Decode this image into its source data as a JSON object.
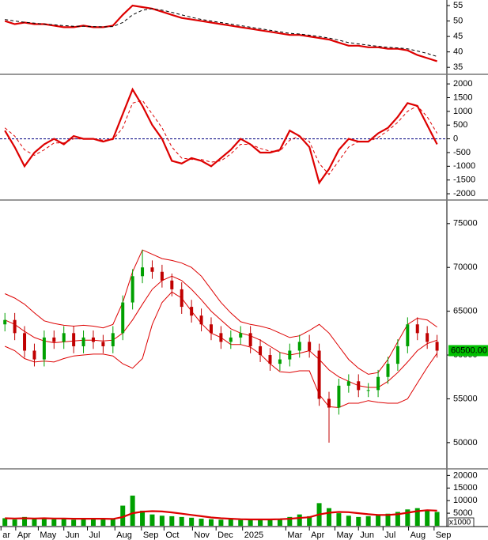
{
  "chart_data": [
    {
      "type": "line",
      "ylim": [
        33,
        56.8
      ],
      "yticks": [
        35,
        40,
        45,
        50,
        55
      ],
      "series": [
        {
          "color": "#dd0000",
          "style": "solid",
          "values": [
            50,
            49,
            49.5,
            49,
            49,
            48.5,
            48,
            48,
            48.5,
            48,
            48,
            48.5,
            52,
            55,
            54.5,
            54,
            53,
            52,
            51,
            50.5,
            50,
            49.5,
            49,
            48.5,
            48,
            47.5,
            47,
            46.5,
            46,
            45.5,
            45.5,
            45,
            44.5,
            44,
            43,
            42,
            42,
            41.5,
            41.5,
            41,
            41,
            40.5,
            39,
            38,
            37
          ]
        },
        {
          "color": "#000000",
          "style": "dashed",
          "values": [
            50.5,
            50,
            49.6,
            49.3,
            49,
            48.8,
            48.5,
            48.3,
            48.3,
            48.2,
            48.1,
            48.2,
            49.5,
            52,
            53.5,
            54,
            53.5,
            52.8,
            52,
            51.2,
            50.5,
            50,
            49.5,
            49,
            48.5,
            48,
            47.5,
            47,
            46.5,
            46,
            45.8,
            45.4,
            45,
            44.5,
            43.8,
            43,
            42.6,
            42.2,
            41.8,
            41.5,
            41.3,
            41,
            40.3,
            39.5,
            38.5
          ]
        }
      ]
    },
    {
      "type": "line",
      "ylim": [
        -2200,
        2320
      ],
      "yticks": [
        -2000,
        -1500,
        -1000,
        -500,
        0,
        500,
        1000,
        1500,
        2000
      ],
      "zero_line": true,
      "series": [
        {
          "color": "#dd0000",
          "style": "solid",
          "values": [
            300,
            -300,
            -1000,
            -500,
            -200,
            0,
            -200,
            100,
            0,
            0,
            -100,
            0,
            900,
            1800,
            1200,
            500,
            0,
            -800,
            -900,
            -700,
            -800,
            -1000,
            -700,
            -400,
            0,
            -200,
            -500,
            -500,
            -400,
            300,
            100,
            -300,
            -1600,
            -1100,
            -400,
            0,
            -100,
            -100,
            200,
            400,
            800,
            1300,
            1200,
            500,
            -200
          ]
        },
        {
          "color": "#dd0000",
          "style": "dashed",
          "values": [
            400,
            100,
            -400,
            -600,
            -400,
            -150,
            -150,
            0,
            0,
            0,
            -50,
            -30,
            400,
            1300,
            1400,
            900,
            400,
            -300,
            -700,
            -750,
            -750,
            -850,
            -800,
            -550,
            -200,
            -200,
            -350,
            -450,
            -450,
            -50,
            100,
            -100,
            -900,
            -1300,
            -800,
            -300,
            -100,
            -100,
            50,
            300,
            600,
            1000,
            1200,
            800,
            200
          ]
        }
      ]
    },
    {
      "type": "candlestick",
      "ylim": [
        47100,
        77600
      ],
      "yticks": [
        50000,
        55000,
        60000,
        65000,
        70000,
        75000
      ],
      "up_color": "#00a000",
      "down_color": "#c00000",
      "open": [
        63500,
        64000,
        62500,
        60500,
        59500,
        62000,
        61500,
        62500,
        61000,
        62000,
        61500,
        61000,
        62500,
        66000,
        69000,
        70000,
        69500,
        68500,
        67500,
        65500,
        64500,
        63500,
        62500,
        61500,
        62000,
        62500,
        61000,
        60000,
        59000,
        59500,
        60500,
        61500,
        60500,
        55000,
        54000,
        56500,
        57000,
        56000,
        56000,
        57500,
        59000,
        61000,
        63500,
        62500,
        61500
      ],
      "high": [
        64800,
        64800,
        63300,
        61300,
        62800,
        62800,
        63300,
        63300,
        62800,
        62800,
        62300,
        63300,
        66800,
        69800,
        72000,
        70800,
        70300,
        69300,
        68300,
        66300,
        65300,
        64300,
        63300,
        62800,
        63300,
        63300,
        61800,
        60800,
        60300,
        61300,
        62300,
        62300,
        61300,
        55800,
        57300,
        57800,
        57800,
        56800,
        58300,
        59800,
        61800,
        64300,
        64300,
        63300,
        62300
      ],
      "low": [
        62700,
        61700,
        59700,
        58700,
        58700,
        60700,
        60700,
        60200,
        60200,
        60700,
        60200,
        60200,
        61700,
        65200,
        68200,
        68700,
        67700,
        66700,
        64700,
        63700,
        62700,
        61700,
        60700,
        60700,
        61200,
        60200,
        59200,
        58200,
        58200,
        58700,
        59700,
        59700,
        54200,
        50000,
        53200,
        55700,
        55200,
        55200,
        55200,
        56700,
        58200,
        60200,
        61700,
        60700,
        59700
      ],
      "close": [
        64000,
        62500,
        60500,
        59500,
        62000,
        61500,
        62500,
        61000,
        62000,
        61500,
        61000,
        62500,
        66000,
        69000,
        70000,
        69500,
        68500,
        67500,
        65500,
        64500,
        63500,
        62500,
        61500,
        62000,
        62500,
        61000,
        60000,
        59000,
        59500,
        60500,
        61500,
        60500,
        55000,
        54000,
        56500,
        57000,
        56000,
        56000,
        57500,
        59000,
        61000,
        63500,
        62500,
        61500,
        60500
      ],
      "series": [
        {
          "color": "#dd0000",
          "style": "thin",
          "values": [
            67000,
            66500,
            65800,
            64800,
            63900,
            63600,
            63400,
            63300,
            63400,
            63300,
            63100,
            63500,
            66000,
            69500,
            72000,
            71500,
            71000,
            70800,
            70500,
            70000,
            69000,
            67500,
            66000,
            64800,
            63800,
            63500,
            63300,
            63000,
            62500,
            62000,
            62200,
            62800,
            63500,
            62500,
            61000,
            59500,
            58500,
            57800,
            58000,
            59500,
            61500,
            63500,
            64200,
            64000,
            63200
          ]
        },
        {
          "color": "#dd0000",
          "style": "thin",
          "values": [
            64000,
            63500,
            62700,
            62000,
            61600,
            61400,
            61500,
            61600,
            61700,
            61700,
            61600,
            61700,
            62500,
            64000,
            65800,
            67500,
            68500,
            69000,
            68500,
            67500,
            66300,
            65000,
            64000,
            63000,
            62500,
            62200,
            61700,
            61000,
            60300,
            60000,
            60200,
            60500,
            59500,
            58300,
            57500,
            57000,
            56500,
            56300,
            56300,
            57000,
            58000,
            59200,
            60500,
            61300,
            61700
          ]
        },
        {
          "color": "#dd0000",
          "style": "thin",
          "values": [
            61000,
            60500,
            59600,
            59200,
            59300,
            59200,
            59600,
            59900,
            60000,
            60100,
            60100,
            59900,
            59000,
            58500,
            59600,
            63500,
            66000,
            67200,
            66500,
            65000,
            63600,
            62500,
            62000,
            61200,
            61200,
            60900,
            60100,
            59000,
            58100,
            58000,
            58200,
            58200,
            55500,
            54100,
            54000,
            54500,
            54500,
            54800,
            54600,
            54500,
            54500,
            55000,
            56800,
            58600,
            60200
          ]
        }
      ],
      "last_price": {
        "value": 60500,
        "label": "60500.00",
        "color": "#00c000"
      }
    },
    {
      "type": "bar",
      "ylim": [
        0,
        22000
      ],
      "yticks": [
        5000,
        10000,
        15000,
        20000
      ],
      "unit_label": "x1000",
      "xlim": [
        -0.5,
        45
      ],
      "xticks": [
        {
          "value": -0.4,
          "label": "ar"
        },
        {
          "value": 1.1,
          "label": "Apr"
        },
        {
          "value": 3.4,
          "label": "May"
        },
        {
          "value": 6,
          "label": "Jun"
        },
        {
          "value": 8.4,
          "label": "Jul"
        },
        {
          "value": 11.2,
          "label": "Aug"
        },
        {
          "value": 13.9,
          "label": "Sep"
        },
        {
          "value": 16.2,
          "label": "Oct"
        },
        {
          "value": 19.1,
          "label": "Nov"
        },
        {
          "value": 21.5,
          "label": "Dec"
        },
        {
          "value": 24.2,
          "label": "2025"
        },
        {
          "value": 28.6,
          "label": "Mar"
        },
        {
          "value": 31,
          "label": "Apr"
        },
        {
          "value": 33.6,
          "label": "May"
        },
        {
          "value": 36,
          "label": "Jun"
        },
        {
          "value": 38.5,
          "label": "Jul"
        },
        {
          "value": 41.1,
          "label": "Aug"
        },
        {
          "value": 43.7,
          "label": "Sep"
        }
      ],
      "series": [
        {
          "color": "#00a000",
          "kind": "bar",
          "values": [
            3000,
            2500,
            3500,
            2800,
            3200,
            2600,
            3000,
            2400,
            2700,
            3100,
            2500,
            2800,
            8000,
            12000,
            6000,
            4500,
            4000,
            3800,
            3500,
            3200,
            2800,
            2600,
            2400,
            2500,
            2300,
            2200,
            2500,
            2600,
            2800,
            3500,
            4500,
            3800,
            9000,
            7000,
            5000,
            4000,
            3500,
            3800,
            4200,
            4800,
            5500,
            6500,
            7000,
            6000,
            5500
          ]
        },
        {
          "color": "#dd0000",
          "kind": "line",
          "values": [
            3000,
            2900,
            3000,
            2900,
            3000,
            2900,
            2900,
            2800,
            2800,
            2800,
            2800,
            2700,
            3500,
            5000,
            5600,
            5800,
            5700,
            5300,
            4800,
            4300,
            3800,
            3300,
            3000,
            2800,
            2600,
            2500,
            2500,
            2500,
            2600,
            2800,
            3100,
            3400,
            4500,
            5200,
            5500,
            5400,
            5000,
            4600,
            4300,
            4300,
            4600,
            5200,
            5800,
            6200,
            6000
          ]
        }
      ]
    }
  ]
}
